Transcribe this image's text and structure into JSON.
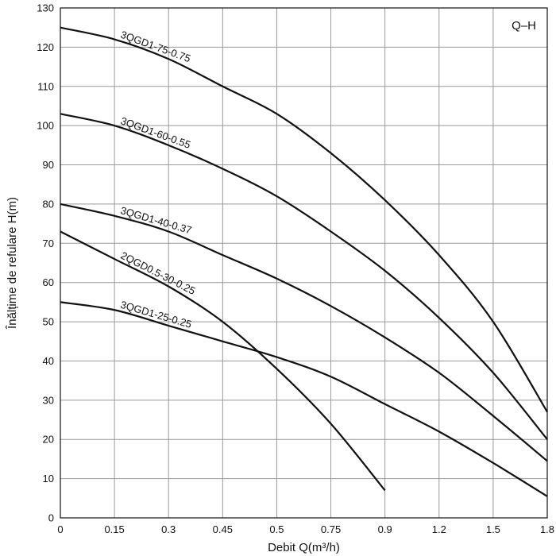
{
  "chart_data": {
    "type": "line",
    "title": "",
    "corner_label": "Q–H",
    "xlabel": "Debit Q(m³/h)",
    "ylabel": "Înălțime de refulare H(m)",
    "xlim": [
      0,
      1.8
    ],
    "ylim": [
      0,
      130
    ],
    "x_scale": "categorical-ticks",
    "x_tick_values": [
      0,
      0.15,
      0.3,
      0.45,
      0.5,
      0.75,
      0.9,
      1.2,
      1.5,
      1.8
    ],
    "x_tick_labels": [
      "0",
      "0.15",
      "0.3",
      "0.45",
      "0.5",
      "0.75",
      "0.9",
      "1.2",
      "1.5",
      "1.8"
    ],
    "y_ticks": [
      0,
      10,
      20,
      30,
      40,
      50,
      60,
      70,
      80,
      90,
      100,
      110,
      120,
      130
    ],
    "grid": true,
    "series": [
      {
        "name": "3QGD1-75-0.75",
        "x": [
          0,
          0.15,
          0.3,
          0.45,
          0.5,
          0.75,
          0.9,
          1.2,
          1.5,
          1.8
        ],
        "y": [
          125,
          122,
          117,
          110,
          103,
          93,
          81,
          67,
          50,
          27
        ]
      },
      {
        "name": "3QGD1-60-0.55",
        "x": [
          0,
          0.15,
          0.3,
          0.45,
          0.5,
          0.75,
          0.9,
          1.2,
          1.5,
          1.8
        ],
        "y": [
          103,
          100,
          95,
          89,
          82,
          73,
          63,
          51,
          37,
          20
        ]
      },
      {
        "name": "3QGD1-40-0.37",
        "x": [
          0,
          0.15,
          0.3,
          0.45,
          0.5,
          0.75,
          0.9,
          1.2,
          1.5,
          1.8
        ],
        "y": [
          80,
          77,
          73,
          67,
          61,
          54,
          46,
          37,
          26,
          14.5
        ]
      },
      {
        "name": "2QGD0.5-30-0.25",
        "x": [
          0,
          0.15,
          0.3,
          0.45,
          0.5,
          0.75,
          0.9
        ],
        "y": [
          73,
          66,
          59,
          50,
          38,
          24,
          7
        ]
      },
      {
        "name": "3QGD1-25-0.25",
        "x": [
          0,
          0.15,
          0.3,
          0.45,
          0.5,
          0.75,
          0.9,
          1.2,
          1.5,
          1.8
        ],
        "y": [
          55,
          53,
          49,
          45,
          41,
          36,
          29,
          22,
          14,
          5.5
        ]
      }
    ]
  }
}
